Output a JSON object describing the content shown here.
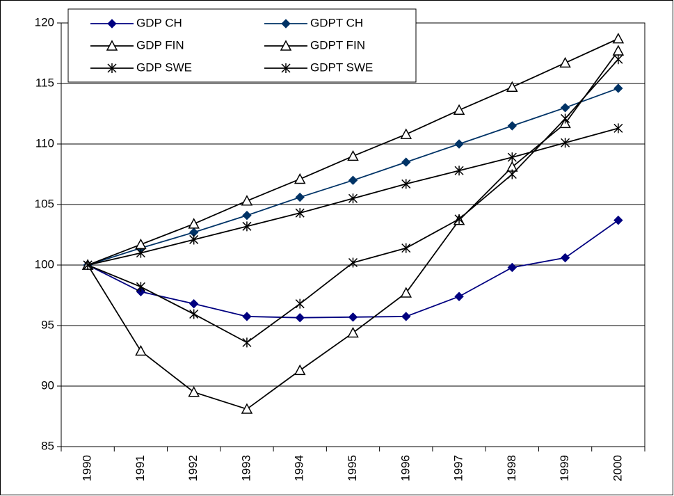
{
  "chart_data": {
    "type": "line",
    "categories": [
      "1990",
      "1991",
      "1992",
      "1993",
      "1994",
      "1995",
      "1996",
      "1997",
      "1998",
      "1999",
      "2000"
    ],
    "ylim": [
      85,
      120
    ],
    "yticks": [
      85,
      90,
      95,
      100,
      105,
      110,
      115,
      120
    ],
    "grid": true,
    "series": [
      {
        "name": "GDP CH",
        "color": "#000080",
        "marker": "diamond",
        "values": [
          100,
          97.8,
          96.8,
          95.75,
          95.65,
          95.7,
          95.75,
          97.4,
          99.8,
          100.6,
          103.7
        ]
      },
      {
        "name": "GDPT CH",
        "color": "#003366",
        "marker": "diamond",
        "values": [
          100,
          101.4,
          102.7,
          104.1,
          105.6,
          107.0,
          108.5,
          110.0,
          111.5,
          113.0,
          114.6
        ]
      },
      {
        "name": "GDP FIN",
        "color": "#000000",
        "marker": "triangle",
        "values": [
          100,
          92.9,
          89.5,
          88.1,
          91.3,
          94.4,
          97.7,
          103.7,
          108.1,
          111.7,
          117.7
        ]
      },
      {
        "name": "GDPT FIN",
        "color": "#000000",
        "marker": "triangle",
        "values": [
          100,
          101.7,
          103.4,
          105.3,
          107.1,
          109.0,
          110.8,
          112.8,
          114.7,
          116.7,
          118.7
        ]
      },
      {
        "name": "GDP SWE",
        "color": "#000000",
        "marker": "star",
        "values": [
          100,
          98.2,
          95.95,
          93.6,
          96.8,
          100.2,
          101.4,
          103.8,
          107.5,
          112.1,
          117.0
        ]
      },
      {
        "name": "GDPT SWE",
        "color": "#000000",
        "marker": "star",
        "values": [
          100,
          101.0,
          102.1,
          103.2,
          104.3,
          105.5,
          106.7,
          107.8,
          108.9,
          110.1,
          111.3
        ]
      }
    ]
  }
}
